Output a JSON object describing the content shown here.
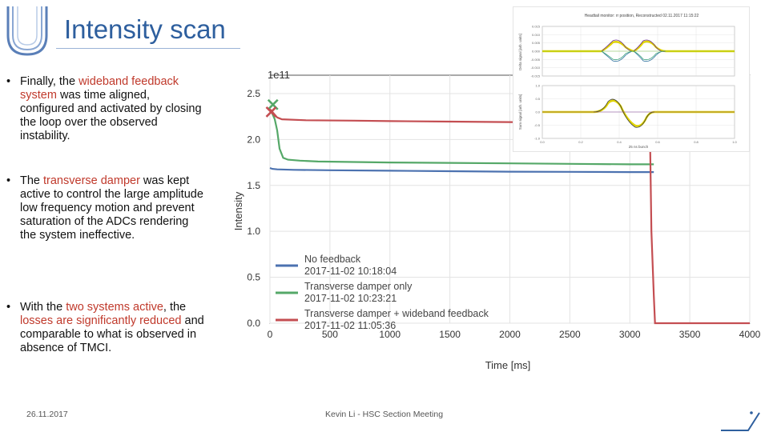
{
  "slide": {
    "title": "Intensity scan",
    "date": "26.11.2017",
    "footer": "Kevin Li - HSC Section Meeting"
  },
  "bullets": [
    {
      "parts": [
        {
          "t": "Finally, the ",
          "hl": false
        },
        {
          "t": "wideband feedback system",
          "hl": true
        },
        {
          "t": " was time aligned, configured and activated by closing the loop over the observed instability.",
          "hl": false
        }
      ]
    },
    {
      "parts": [
        {
          "t": "The ",
          "hl": false
        },
        {
          "t": "transverse damper",
          "hl": true
        },
        {
          "t": " was kept active to control the large amplitude low frequency motion and prevent saturation of the ADCs rendering the system ineffective.",
          "hl": false
        }
      ]
    },
    {
      "parts": [
        {
          "t": "With the ",
          "hl": false
        },
        {
          "t": "two systems active",
          "hl": true
        },
        {
          "t": ", the ",
          "hl": false
        },
        {
          "t": "losses are significantly reduced",
          "hl": true
        },
        {
          "t": " and comparable to what is observed in absence of TMCI.",
          "hl": false
        }
      ]
    }
  ],
  "colors": {
    "title": "#2e5f9e",
    "highlight": "#c0392b",
    "blue": "#4c72b0",
    "green": "#55a868",
    "red": "#c44e52"
  },
  "chart_data": [
    {
      "type": "line",
      "xlabel": "Time [ms]",
      "ylabel": "Intensity",
      "offset_label": "1e11",
      "xlim": [
        0,
        4000
      ],
      "ylim": [
        0,
        2.7
      ],
      "xticks": [
        0,
        500,
        1000,
        1500,
        2000,
        2500,
        3000,
        3500,
        4000
      ],
      "yticks": [
        0.0,
        0.5,
        1.0,
        1.5,
        2.0,
        2.5
      ],
      "legend_position": "lower-left",
      "series": [
        {
          "name": "No feedback\n2017-11-02 10:18:04",
          "color": "#4c72b0",
          "x": [
            0,
            20,
            60,
            200,
            500,
            1000,
            1500,
            2000,
            2500,
            3000,
            3200
          ],
          "y": [
            1.69,
            1.68,
            1.675,
            1.67,
            1.665,
            1.66,
            1.655,
            1.65,
            1.648,
            1.645,
            1.645
          ]
        },
        {
          "name": "Transverse damper only\n2017-11-02 10:23:21",
          "color": "#55a868",
          "x": [
            0,
            20,
            40,
            60,
            80,
            110,
            150,
            250,
            400,
            700,
            1000,
            1500,
            2000,
            2500,
            3000,
            3200
          ],
          "y": [
            2.32,
            2.28,
            2.22,
            2.1,
            1.9,
            1.8,
            1.78,
            1.77,
            1.76,
            1.755,
            1.75,
            1.745,
            1.74,
            1.735,
            1.73,
            1.73
          ]
        },
        {
          "name": "Transverse damper + wideband feedback\n2017-11-02 11:05:36",
          "color": "#c44e52",
          "x": [
            0,
            20,
            60,
            100,
            300,
            700,
            1000,
            1500,
            2000,
            2500,
            3000,
            3150,
            3170,
            3180,
            3200,
            3210,
            3300,
            3500,
            4000
          ],
          "y": [
            2.33,
            2.3,
            2.24,
            2.22,
            2.21,
            2.205,
            2.2,
            2.195,
            2.19,
            2.185,
            2.18,
            2.18,
            1.9,
            1.0,
            0.3,
            0.0,
            0.0,
            0.0,
            0.0
          ]
        }
      ],
      "markers": [
        {
          "x": 25,
          "y": 2.38,
          "color": "#55a868"
        },
        {
          "x": 10,
          "y": 2.3,
          "color": "#c44e52"
        }
      ]
    },
    {
      "type": "line",
      "title": "Headtail monitor: rr position, Reconstructed 02.11.2017 11:15:22",
      "ylabel": "Delta signal [arb. units]",
      "xticks": [],
      "yticks": [
        "0.015",
        "0.010",
        "0.005",
        "0.000",
        "-0.005",
        "-0.010",
        "-0.015"
      ],
      "series": []
    },
    {
      "type": "line",
      "ylabel": "Sum signal [arb. units]",
      "xlabel": "25 ns bunch",
      "xticks": [
        "0.0",
        "0.2",
        "0.4",
        "0.6",
        "0.8",
        "1.0"
      ],
      "yticks": [
        "1.0",
        "0.5",
        "0.0",
        "-0.5",
        "-1.0"
      ],
      "series": []
    }
  ]
}
